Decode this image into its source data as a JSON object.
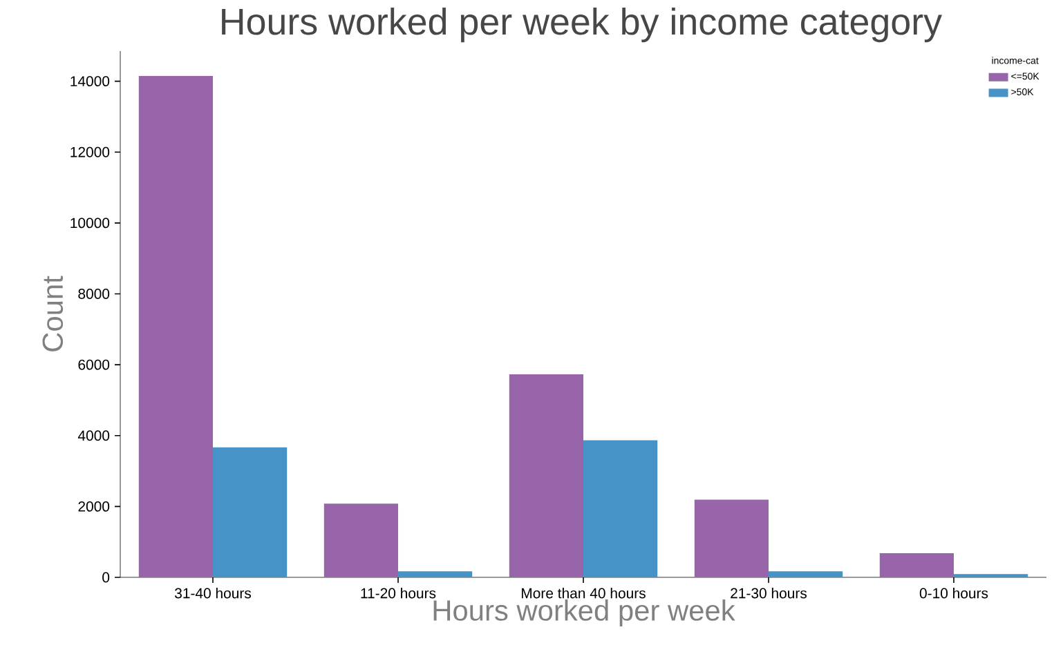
{
  "chart_data": {
    "type": "bar",
    "title": "Hours worked per week by income category",
    "xlabel": "Hours worked per week",
    "ylabel": "Count",
    "legend_title": "income-cat",
    "categories": [
      "31-40 hours",
      "11-20 hours",
      "More than 40 hours",
      "21-30 hours",
      "0-10 hours"
    ],
    "series": [
      {
        "name": "<=50K",
        "color": "#9865ab",
        "values": [
          14150,
          2080,
          5730,
          2190,
          680
        ]
      },
      {
        "name": ">50K",
        "color": "#4792c6",
        "values": [
          3670,
          170,
          3870,
          170,
          90
        ]
      }
    ],
    "ylim": [
      0,
      14850
    ],
    "yticks": [
      0,
      2000,
      4000,
      6000,
      8000,
      10000,
      12000,
      14000
    ],
    "grid": false,
    "legend": "top right"
  }
}
